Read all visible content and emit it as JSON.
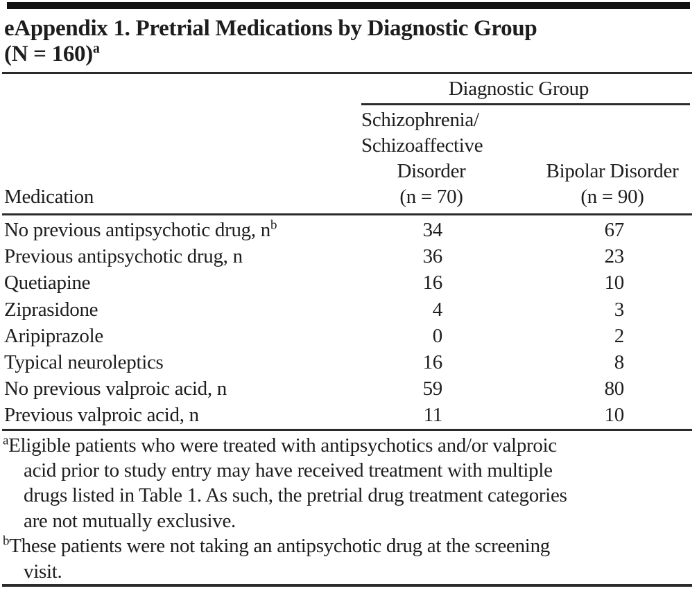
{
  "title": {
    "line1": "eAppendix 1. Pretrial Medications by Diagnostic Group",
    "line2": "(N = 160)",
    "line2_sup": "a"
  },
  "table": {
    "group_header": "Diagnostic Group",
    "col1_header": "Medication",
    "col2_header_lines": [
      "Schizophrenia/",
      "Schizoaffective",
      "Disorder",
      "(n = 70)"
    ],
    "col3_header_lines": [
      "Bipolar Disorder",
      "(n = 90)"
    ],
    "rows": [
      {
        "label": "No previous antipsychotic drug, n",
        "label_sup": "b",
        "schizo": "34",
        "bipolar": "67"
      },
      {
        "label": "Previous antipsychotic drug, n",
        "schizo": "36",
        "bipolar": "23"
      },
      {
        "label": "Quetiapine",
        "schizo": "16",
        "bipolar": "10"
      },
      {
        "label": "Ziprasidone",
        "schizo": "4",
        "bipolar": "3"
      },
      {
        "label": "Aripiprazole",
        "schizo": "0",
        "bipolar": "2"
      },
      {
        "label": "Typical neuroleptics",
        "schizo": "16",
        "bipolar": "8"
      },
      {
        "label": "No previous valproic acid, n",
        "schizo": "59",
        "bipolar": "80"
      },
      {
        "label": "Previous valproic acid, n",
        "schizo": "11",
        "bipolar": "10"
      }
    ]
  },
  "footnotes": {
    "a": {
      "sup": "a",
      "lines": [
        "Eligible patients who were treated with antipsychotics and/or valproic",
        "acid prior to study entry may have received treatment with multiple",
        "drugs listed in Table 1. As such, the pretrial drug treatment categories",
        "are not mutually exclusive."
      ]
    },
    "b": {
      "sup": "b",
      "lines": [
        "These patients were not taking an antipsychotic drug at the screening",
        "visit."
      ]
    }
  },
  "colors": {
    "background": "#ffffff",
    "text": "#1d1d1d",
    "rule": "#2b2b2b",
    "top_bar": "#121212"
  }
}
